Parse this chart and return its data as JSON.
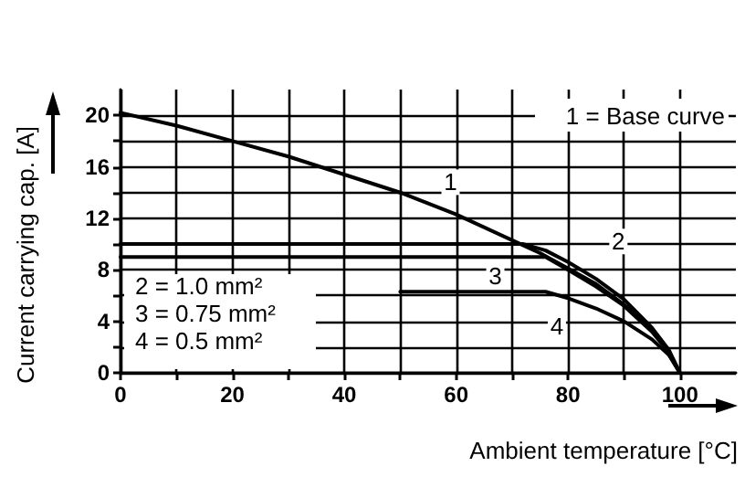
{
  "chart_data": {
    "type": "line",
    "xlabel": "Ambient temperature [°C]",
    "ylabel": "Current carrying cap. [A]",
    "series": [
      {
        "color": "#000000",
        "x": [
          0,
          10,
          20,
          30,
          40,
          50,
          60,
          70,
          75,
          80,
          85,
          90,
          94,
          97,
          100
        ],
        "values": [
          20.2,
          19.2,
          18,
          16.8,
          15.4,
          14,
          12.3,
          10.3,
          9.3,
          8.1,
          6.9,
          5.3,
          3.8,
          2.2,
          0
        ]
      },
      {
        "color": "#000000",
        "x": [
          0,
          72,
          76,
          80,
          85,
          90,
          95,
          98,
          100
        ],
        "values": [
          10,
          10,
          9.5,
          8.6,
          7.3,
          5.7,
          3.5,
          1.8,
          0
        ]
      },
      {
        "color": "#000000",
        "x": [
          0,
          76,
          80,
          85,
          90,
          95,
          98,
          100
        ],
        "values": [
          9,
          9,
          8,
          6.7,
          5.2,
          3.2,
          1.6,
          0
        ]
      },
      {
        "color": "#000000",
        "x": [
          50,
          76,
          80,
          85,
          90,
          95,
          98,
          100
        ],
        "values": [
          6.3,
          6.3,
          5.8,
          5,
          4,
          2.6,
          1.4,
          0
        ]
      }
    ],
    "xlim": [
      0,
      110
    ],
    "ylim": [
      0,
      22
    ],
    "xticks": [
      0,
      {
        "value": 10,
        "label": null
      },
      20,
      {
        "value": 30,
        "label": null
      },
      40,
      {
        "value": 50,
        "label": null
      },
      60,
      {
        "value": 70,
        "label": null
      },
      80,
      {
        "value": 90,
        "label": null
      },
      100
    ],
    "yticks": [
      0,
      {
        "value": 2,
        "label": null
      },
      4,
      {
        "value": 6,
        "label": null
      },
      8,
      {
        "value": 10,
        "label": null
      },
      12,
      {
        "value": 14,
        "label": null
      },
      16,
      {
        "value": 18,
        "label": null
      },
      20
    ],
    "grid": true,
    "marker": "none",
    "line_style": "solid",
    "annotations": [
      "1 = Base curve",
      "2 = 1.0 mm²",
      "3 = 0.75 mm²",
      "4 = 0.5 mm²",
      {
        "text": "1",
        "x": 59,
        "y": 14.8
      },
      {
        "text": "2",
        "x": 89,
        "y": 10.2
      },
      {
        "text": "3",
        "x": 67,
        "y": 7.5
      },
      {
        "text": "4",
        "x": 78,
        "y": 3.6
      }
    ]
  }
}
